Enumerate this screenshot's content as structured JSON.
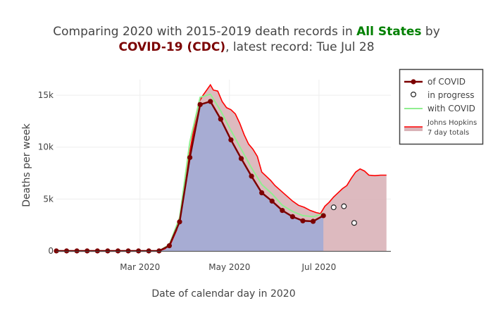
{
  "colors": {
    "cdc_line": "#7b0000",
    "cdc_fill": "#a3abd4",
    "jh_line": "#ff0000",
    "jh_fill": "#d9b3b8",
    "with_covid": "#90ee90",
    "title_green": "#008000",
    "title_maroon": "#7b0000",
    "grid": "#eeeeee"
  },
  "chart_data": {
    "type": "line",
    "title_parts": [
      {
        "text": "Comparing 2020 with 2015-2019 death records in ",
        "style": "normal"
      },
      {
        "text": "All States",
        "style": "green"
      },
      {
        "text": " by",
        "style": "normal"
      }
    ],
    "title_line2_parts": [
      {
        "text": "COVID-19 (CDC)",
        "style": "maroon"
      },
      {
        "text": ", latest record: Tue Jul 28",
        "style": "normal"
      }
    ],
    "xlabel": "Date of calendar day in 2020",
    "ylabel": "Deaths per week",
    "xlim": [
      "2020-01-04",
      "2020-08-19"
    ],
    "ylim": [
      0,
      16500
    ],
    "x_ticks": [
      {
        "date": "2020-03-01",
        "label": "Mar 2020"
      },
      {
        "date": "2020-05-01",
        "label": "May 2020"
      },
      {
        "date": "2020-07-01",
        "label": "Jul 2020"
      }
    ],
    "y_ticks": [
      {
        "value": 0,
        "label": "0"
      },
      {
        "value": 5000,
        "label": "5k"
      },
      {
        "value": 10000,
        "label": "10k"
      },
      {
        "value": 15000,
        "label": "15k"
      }
    ],
    "grid": true,
    "legend_position": "top-right",
    "legend": [
      {
        "label": "of COVID",
        "kind": "line-marker"
      },
      {
        "label": "in progress",
        "kind": "open-marker"
      },
      {
        "label": "with COVID",
        "kind": "green-line"
      },
      {
        "label": "Johns Hopkins\n7 day totals",
        "kind": "red-fill"
      }
    ],
    "series": [
      {
        "name": "of COVID",
        "points": [
          [
            "2020-01-04",
            0
          ],
          [
            "2020-01-11",
            0
          ],
          [
            "2020-01-18",
            0
          ],
          [
            "2020-01-25",
            0
          ],
          [
            "2020-02-01",
            0
          ],
          [
            "2020-02-08",
            0
          ],
          [
            "2020-02-15",
            0
          ],
          [
            "2020-02-22",
            0
          ],
          [
            "2020-02-29",
            0
          ],
          [
            "2020-03-07",
            0
          ],
          [
            "2020-03-14",
            0
          ],
          [
            "2020-03-21",
            500
          ],
          [
            "2020-03-28",
            2800
          ],
          [
            "2020-04-04",
            9000
          ],
          [
            "2020-04-11",
            14100
          ],
          [
            "2020-04-18",
            14400
          ],
          [
            "2020-04-25",
            12700
          ],
          [
            "2020-05-02",
            10700
          ],
          [
            "2020-05-09",
            8900
          ],
          [
            "2020-05-16",
            7200
          ],
          [
            "2020-05-23",
            5600
          ],
          [
            "2020-05-30",
            4800
          ],
          [
            "2020-06-06",
            3900
          ],
          [
            "2020-06-13",
            3300
          ],
          [
            "2020-06-20",
            2900
          ],
          [
            "2020-06-27",
            2850
          ],
          [
            "2020-07-04",
            3400
          ]
        ]
      },
      {
        "name": "in progress",
        "points": [
          [
            "2020-07-11",
            4200
          ],
          [
            "2020-07-18",
            4300
          ],
          [
            "2020-07-25",
            2700
          ]
        ]
      },
      {
        "name": "with COVID",
        "points": [
          [
            "2020-03-14",
            0
          ],
          [
            "2020-03-21",
            600
          ],
          [
            "2020-03-28",
            3200
          ],
          [
            "2020-04-04",
            10500
          ],
          [
            "2020-04-11",
            14800
          ],
          [
            "2020-04-18",
            15100
          ],
          [
            "2020-04-25",
            13500
          ],
          [
            "2020-05-02",
            11600
          ],
          [
            "2020-05-09",
            9800
          ],
          [
            "2020-05-16",
            8000
          ],
          [
            "2020-05-23",
            6400
          ],
          [
            "2020-05-30",
            5500
          ],
          [
            "2020-06-06",
            4400
          ],
          [
            "2020-06-13",
            3800
          ],
          [
            "2020-06-20",
            3400
          ],
          [
            "2020-06-27",
            3300
          ],
          [
            "2020-07-04",
            3600
          ]
        ]
      },
      {
        "name": "Johns Hopkins 7 day totals",
        "points": [
          [
            "2020-03-14",
            0
          ],
          [
            "2020-03-18",
            200
          ],
          [
            "2020-03-22",
            700
          ],
          [
            "2020-03-26",
            2000
          ],
          [
            "2020-03-30",
            4500
          ],
          [
            "2020-04-03",
            8800
          ],
          [
            "2020-04-07",
            12000
          ],
          [
            "2020-04-10",
            14300
          ],
          [
            "2020-04-13",
            15000
          ],
          [
            "2020-04-16",
            15600
          ],
          [
            "2020-04-18",
            16000
          ],
          [
            "2020-04-20",
            15500
          ],
          [
            "2020-04-23",
            15400
          ],
          [
            "2020-04-26",
            14400
          ],
          [
            "2020-04-29",
            13800
          ],
          [
            "2020-05-02",
            13600
          ],
          [
            "2020-05-05",
            13200
          ],
          [
            "2020-05-08",
            12300
          ],
          [
            "2020-05-11",
            11200
          ],
          [
            "2020-05-14",
            10300
          ],
          [
            "2020-05-17",
            9800
          ],
          [
            "2020-05-20",
            9100
          ],
          [
            "2020-05-23",
            7600
          ],
          [
            "2020-05-26",
            7200
          ],
          [
            "2020-05-29",
            6800
          ],
          [
            "2020-06-01",
            6300
          ],
          [
            "2020-06-05",
            5800
          ],
          [
            "2020-06-09",
            5300
          ],
          [
            "2020-06-13",
            4800
          ],
          [
            "2020-06-17",
            4400
          ],
          [
            "2020-06-21",
            4200
          ],
          [
            "2020-06-25",
            3900
          ],
          [
            "2020-06-29",
            3700
          ],
          [
            "2020-07-02",
            3600
          ],
          [
            "2020-07-05",
            4300
          ],
          [
            "2020-07-08",
            4700
          ],
          [
            "2020-07-11",
            5200
          ],
          [
            "2020-07-14",
            5600
          ],
          [
            "2020-07-17",
            6000
          ],
          [
            "2020-07-20",
            6300
          ],
          [
            "2020-07-23",
            7000
          ],
          [
            "2020-07-26",
            7600
          ],
          [
            "2020-07-29",
            7900
          ],
          [
            "2020-08-01",
            7700
          ],
          [
            "2020-08-04",
            7300
          ],
          [
            "2020-08-08",
            7250
          ],
          [
            "2020-08-12",
            7300
          ],
          [
            "2020-08-16",
            7300
          ]
        ]
      }
    ]
  }
}
